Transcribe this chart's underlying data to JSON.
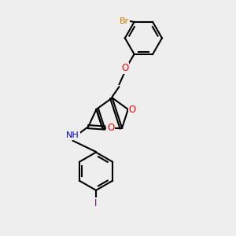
{
  "background_color": "#eeeeee",
  "bond_color": "#000000",
  "atom_colors": {
    "Br": "#cc7700",
    "O": "#ff0000",
    "N": "#0000cd",
    "I": "#7f007f",
    "C": "#000000",
    "H": "#444444"
  },
  "figsize": [
    3.0,
    3.0
  ],
  "dpi": 100
}
